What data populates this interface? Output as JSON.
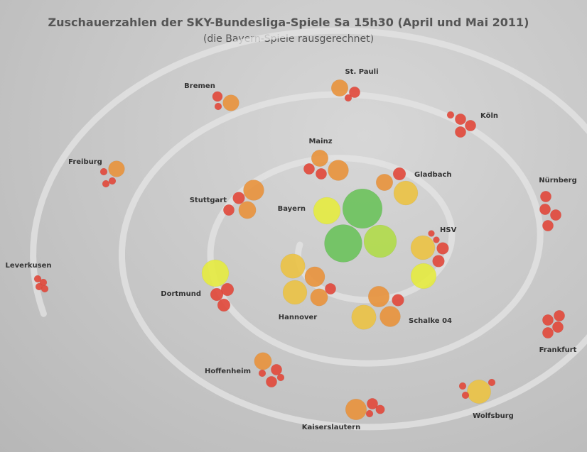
{
  "title": "Zuschauerzahlen der SKY-Bundesliga-Spiele Sa 15h30 (April und Mai 2011)",
  "subtitle": "(die Bayern-Spiele rausgerechnet)",
  "colors": {
    "background": "#c6c6c6",
    "spiral": "#e4e4e4",
    "green": "#6cc35c",
    "yellow_green": "#b1dc4a",
    "yellow": "#e6ec40",
    "gold": "#ecc344",
    "orange": "#e9933c",
    "red": "#e2483a"
  },
  "chart_data": {
    "type": "bubble-spiral",
    "title": "Zuschauerzahlen der SKY-Bundesliga-Spiele Sa 15h30 (April und Mai 2011)",
    "subtitle": "(die Bayern-Spiele rausgerechnet)",
    "size_scale_note": "",
    "teams": [
      {
        "name": "Bayern",
        "bubbles": [
          {
            "size": 780,
            "color": "green"
          },
          {
            "size": 700,
            "color": "green"
          },
          {
            "size": 530,
            "color": "yellow_green"
          },
          {
            "size": 360,
            "color": "yellow"
          }
        ]
      },
      {
        "name": "Dortmund",
        "bubbles": [
          {
            "size": 360,
            "color": "yellow"
          },
          {
            "size": 80,
            "color": "red"
          },
          {
            "size": 80,
            "color": "red"
          },
          {
            "size": 80,
            "color": "red"
          }
        ]
      },
      {
        "name": "HSV",
        "bubbles": [
          {
            "size": 290,
            "color": "gold"
          },
          {
            "size": 320,
            "color": "yellow"
          },
          {
            "size": 70,
            "color": "red"
          },
          {
            "size": 70,
            "color": "red"
          },
          {
            "size": 20,
            "color": "red"
          },
          {
            "size": 20,
            "color": "red"
          }
        ]
      },
      {
        "name": "Schalke 04",
        "bubbles": [
          {
            "size": 300,
            "color": "gold"
          },
          {
            "size": 220,
            "color": "orange"
          },
          {
            "size": 210,
            "color": "orange"
          },
          {
            "size": 70,
            "color": "red"
          }
        ]
      },
      {
        "name": "Hannover",
        "bubbles": [
          {
            "size": 300,
            "color": "gold"
          },
          {
            "size": 290,
            "color": "gold"
          },
          {
            "size": 200,
            "color": "orange"
          },
          {
            "size": 150,
            "color": "orange"
          },
          {
            "size": 60,
            "color": "red"
          }
        ]
      },
      {
        "name": "Gladbach",
        "bubbles": [
          {
            "size": 290,
            "color": "gold"
          },
          {
            "size": 140,
            "color": "orange"
          },
          {
            "size": 80,
            "color": "red"
          }
        ]
      },
      {
        "name": "Stuttgart",
        "bubbles": [
          {
            "size": 210,
            "color": "orange"
          },
          {
            "size": 150,
            "color": "orange"
          },
          {
            "size": 70,
            "color": "red"
          },
          {
            "size": 60,
            "color": "red"
          }
        ]
      },
      {
        "name": "Mainz",
        "bubbles": [
          {
            "size": 210,
            "color": "orange"
          },
          {
            "size": 140,
            "color": "orange"
          },
          {
            "size": 60,
            "color": "red"
          },
          {
            "size": 60,
            "color": "red"
          }
        ]
      },
      {
        "name": "Wolfsburg",
        "bubbles": [
          {
            "size": 280,
            "color": "gold"
          },
          {
            "size": 25,
            "color": "red"
          },
          {
            "size": 25,
            "color": "red"
          },
          {
            "size": 25,
            "color": "red"
          }
        ]
      },
      {
        "name": "Kaiserslautern",
        "bubbles": [
          {
            "size": 220,
            "color": "orange"
          },
          {
            "size": 60,
            "color": "red"
          },
          {
            "size": 40,
            "color": "red"
          },
          {
            "size": 25,
            "color": "red"
          }
        ]
      },
      {
        "name": "Hoffenheim",
        "bubbles": [
          {
            "size": 150,
            "color": "orange"
          },
          {
            "size": 60,
            "color": "red"
          },
          {
            "size": 60,
            "color": "red"
          },
          {
            "size": 25,
            "color": "red"
          },
          {
            "size": 25,
            "color": "red"
          }
        ]
      },
      {
        "name": "Frankfurt",
        "bubbles": [
          {
            "size": 60,
            "color": "red"
          },
          {
            "size": 60,
            "color": "red"
          },
          {
            "size": 60,
            "color": "red"
          },
          {
            "size": 60,
            "color": "red"
          }
        ]
      },
      {
        "name": "Nürnberg",
        "bubbles": [
          {
            "size": 60,
            "color": "red"
          },
          {
            "size": 60,
            "color": "red"
          },
          {
            "size": 60,
            "color": "red"
          },
          {
            "size": 60,
            "color": "red"
          }
        ]
      },
      {
        "name": "Köln",
        "bubbles": [
          {
            "size": 60,
            "color": "red"
          },
          {
            "size": 60,
            "color": "red"
          },
          {
            "size": 60,
            "color": "red"
          },
          {
            "size": 25,
            "color": "red"
          }
        ]
      },
      {
        "name": "St. Pauli",
        "bubbles": [
          {
            "size": 140,
            "color": "orange"
          },
          {
            "size": 60,
            "color": "red"
          },
          {
            "size": 25,
            "color": "red"
          }
        ]
      },
      {
        "name": "Bremen",
        "bubbles": [
          {
            "size": 130,
            "color": "orange"
          },
          {
            "size": 50,
            "color": "red"
          },
          {
            "size": 25,
            "color": "red"
          }
        ]
      },
      {
        "name": "Freiburg",
        "bubbles": [
          {
            "size": 130,
            "color": "orange"
          },
          {
            "size": 25,
            "color": "red"
          },
          {
            "size": 25,
            "color": "red"
          },
          {
            "size": 25,
            "color": "red"
          }
        ]
      },
      {
        "name": "Leverkusen",
        "bubbles": [
          {
            "size": 25,
            "color": "red"
          },
          {
            "size": 25,
            "color": "red"
          },
          {
            "size": 25,
            "color": "red"
          },
          {
            "size": 25,
            "color": "red"
          }
        ]
      }
    ]
  }
}
